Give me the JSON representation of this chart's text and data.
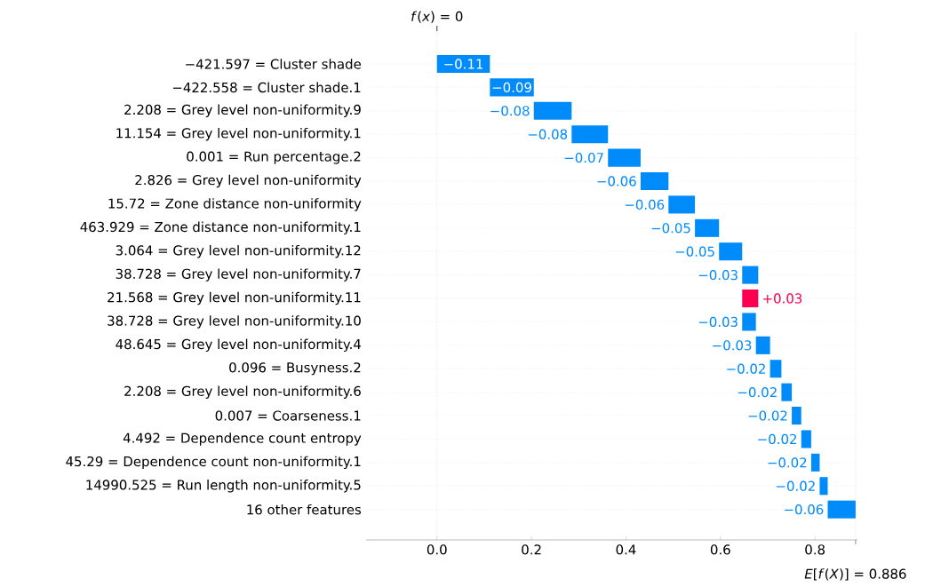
{
  "chart_data": {
    "type": "bar",
    "orientation": "horizontal",
    "categories": [
      "−421.597 = Cluster shade",
      "−422.558 = Cluster shade.1",
      "2.208 = Grey level non-uniformity.9",
      "11.154 = Grey level non-uniformity.1",
      "0.001 = Run percentage.2",
      "2.826 = Grey level non-uniformity",
      "15.72 = Zone distance non-uniformity",
      "463.929 = Zone distance non-uniformity.1",
      "3.064 = Grey level non-uniformity.12",
      "38.728 = Grey level non-uniformity.7",
      "21.568 = Grey level non-uniformity.11",
      "38.728 = Grey level non-uniformity.10",
      "48.645 = Grey level non-uniformity.4",
      "0.096 = Busyness.2",
      "2.208 = Grey level non-uniformity.6",
      "0.007 = Coarseness.1",
      "4.492 = Dependence count entropy",
      "45.29 = Dependence count non-uniformity.1",
      "14990.525 = Run length non-uniformity.5",
      "16 other features"
    ],
    "base": [
      0.112,
      0.205,
      0.285,
      0.362,
      0.431,
      0.49,
      0.546,
      0.597,
      0.646,
      0.68,
      0.646,
      0.675,
      0.705,
      0.729,
      0.751,
      0.771,
      0.792,
      0.81,
      0.827,
      0.886
    ],
    "values": [
      -0.112,
      -0.093,
      -0.08,
      -0.077,
      -0.069,
      -0.059,
      -0.056,
      -0.051,
      -0.049,
      -0.034,
      0.034,
      -0.029,
      -0.03,
      -0.024,
      -0.022,
      -0.02,
      -0.021,
      -0.018,
      -0.017,
      -0.059
    ],
    "value_labels": [
      "−0.11",
      "−0.09",
      "−0.08",
      "−0.08",
      "−0.07",
      "−0.06",
      "−0.06",
      "−0.05",
      "−0.05",
      "−0.03",
      "+0.03",
      "−0.03",
      "−0.03",
      "−0.02",
      "−0.02",
      "−0.02",
      "−0.02",
      "−0.02",
      "−0.02",
      "−0.06"
    ],
    "colors": [
      "#008bfb",
      "#008bfb",
      "#008bfb",
      "#008bfb",
      "#008bfb",
      "#008bfb",
      "#008bfb",
      "#008bfb",
      "#008bfb",
      "#008bfb",
      "#ff0051",
      "#008bfb",
      "#008bfb",
      "#008bfb",
      "#008bfb",
      "#008bfb",
      "#008bfb",
      "#008bfb",
      "#008bfb",
      "#008bfb"
    ],
    "xlim": [
      -0.15,
      0.89
    ],
    "xticks": [
      {
        "value": 0,
        "label": "0.0"
      },
      0.2,
      0.4,
      0.6,
      0.8
    ],
    "grid": "y",
    "ref_lines": [
      {
        "axis": "x",
        "value": 0,
        "label": "*f*(*x*) = 0",
        "color": "#cccccc",
        "line_style": "dotted"
      },
      {
        "axis": "x",
        "value": 0.886,
        "label": "*E*[*f*(*X*)] = 0.886",
        "color": "#cccccc",
        "line_style": "dotted"
      }
    ]
  }
}
